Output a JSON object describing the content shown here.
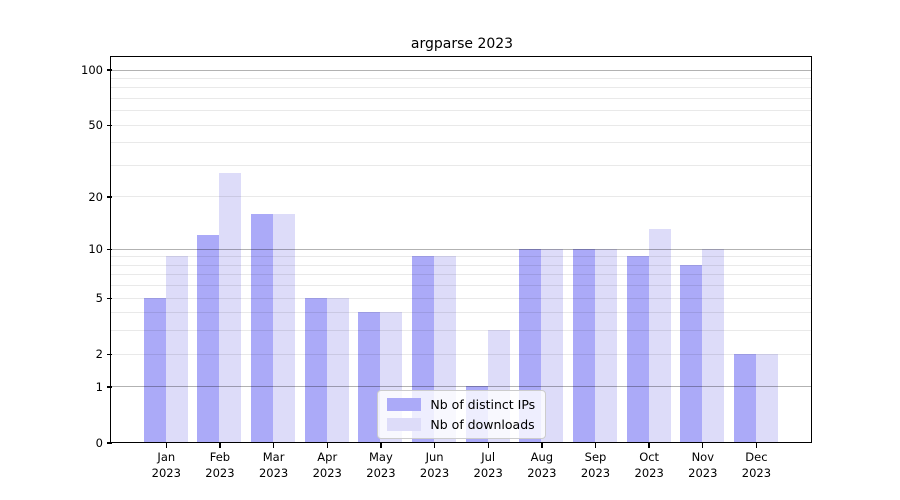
{
  "title": "argparse 2023",
  "legend": {
    "items": [
      {
        "label": "Nb of distinct IPs",
        "color": "#abaaf8"
      },
      {
        "label": "Nb of downloads",
        "color": "#dddcf9"
      }
    ]
  },
  "axes": {
    "y_ticks": [
      {
        "label": "100",
        "value": 100
      },
      {
        "label": "50",
        "value": 50
      },
      {
        "label": "20",
        "value": 20
      },
      {
        "label": "10",
        "value": 10
      },
      {
        "label": "5",
        "value": 5
      },
      {
        "label": "2",
        "value": 2
      },
      {
        "label": "1",
        "value": 1
      },
      {
        "label": "0",
        "value": 0
      }
    ],
    "y_major_grid": [
      1,
      10,
      100
    ],
    "y_minor_grid": [
      2,
      3,
      4,
      5,
      6,
      7,
      8,
      9,
      20,
      30,
      40,
      50,
      60,
      70,
      80,
      90
    ],
    "x_ticks": [
      {
        "month": "Jan",
        "year": "2023"
      },
      {
        "month": "Feb",
        "year": "2023"
      },
      {
        "month": "Mar",
        "year": "2023"
      },
      {
        "month": "Apr",
        "year": "2023"
      },
      {
        "month": "May",
        "year": "2023"
      },
      {
        "month": "Jun",
        "year": "2023"
      },
      {
        "month": "Jul",
        "year": "2023"
      },
      {
        "month": "Aug",
        "year": "2023"
      },
      {
        "month": "Sep",
        "year": "2023"
      },
      {
        "month": "Oct",
        "year": "2023"
      },
      {
        "month": "Nov",
        "year": "2023"
      },
      {
        "month": "Dec",
        "year": "2023"
      }
    ]
  },
  "chart_data": {
    "type": "bar",
    "title": "argparse 2023",
    "categories": [
      "Jan 2023",
      "Feb 2023",
      "Mar 2023",
      "Apr 2023",
      "May 2023",
      "Jun 2023",
      "Jul 2023",
      "Aug 2023",
      "Sep 2023",
      "Oct 2023",
      "Nov 2023",
      "Dec 2023"
    ],
    "series": [
      {
        "name": "Nb of distinct IPs",
        "color": "#abaaf8",
        "values": [
          5,
          12,
          16,
          5,
          4,
          9,
          1,
          10,
          10,
          9,
          8,
          2
        ]
      },
      {
        "name": "Nb of downloads",
        "color": "#dddcf9",
        "values": [
          9,
          27,
          16,
          5,
          4,
          9,
          3,
          10,
          10,
          13,
          10,
          2
        ]
      }
    ],
    "xlabel": "",
    "ylabel": "",
    "yscale": "log1p",
    "ylim": [
      0,
      117
    ],
    "y_tick_values": [
      0,
      1,
      2,
      5,
      10,
      20,
      50,
      100
    ],
    "grid": true,
    "grid_over_bars": true,
    "legend_position": "lower center"
  }
}
